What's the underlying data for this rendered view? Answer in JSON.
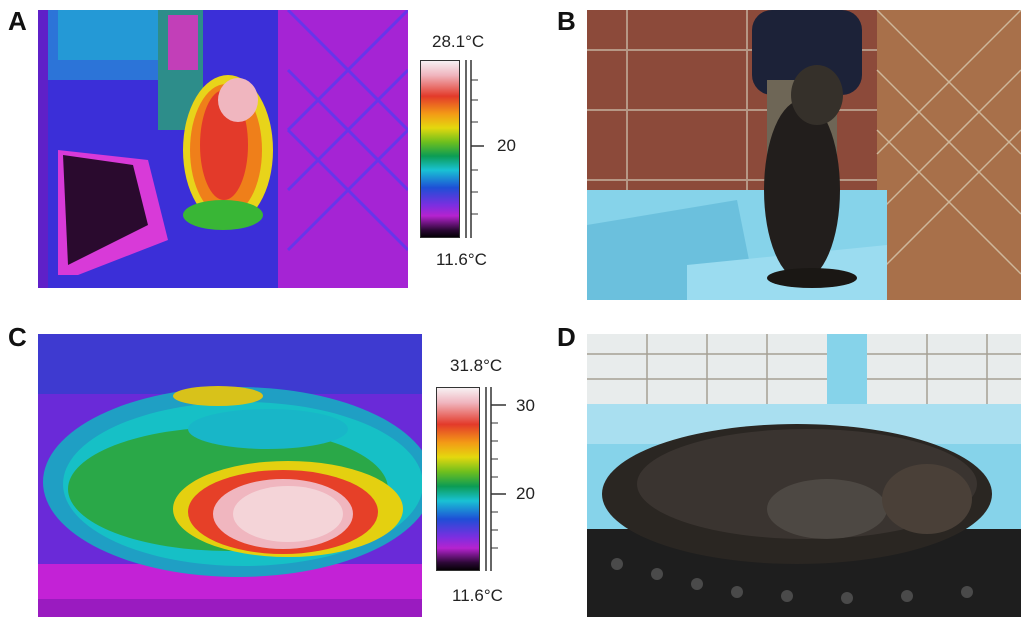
{
  "panels": {
    "a": {
      "letter": "A"
    },
    "b": {
      "letter": "B"
    },
    "c": {
      "letter": "C"
    },
    "d": {
      "letter": "D"
    }
  },
  "scale_a": {
    "max": "28.1°C",
    "min": "11.6°C",
    "ticks": [
      "20"
    ]
  },
  "scale_c": {
    "max": "31.8°C",
    "min": "11.6°C",
    "ticks": [
      "30",
      "20"
    ]
  },
  "colors": {
    "thermal_hot": "#f4d4d8",
    "thermal_warm": "#e33a2a",
    "thermal_mid": "#16b8c8",
    "thermal_cool": "#2a2fd8",
    "thermal_cold": "#c81fd8",
    "pool_blue": "#86d3ea",
    "fur_dark": "#2a2622"
  }
}
